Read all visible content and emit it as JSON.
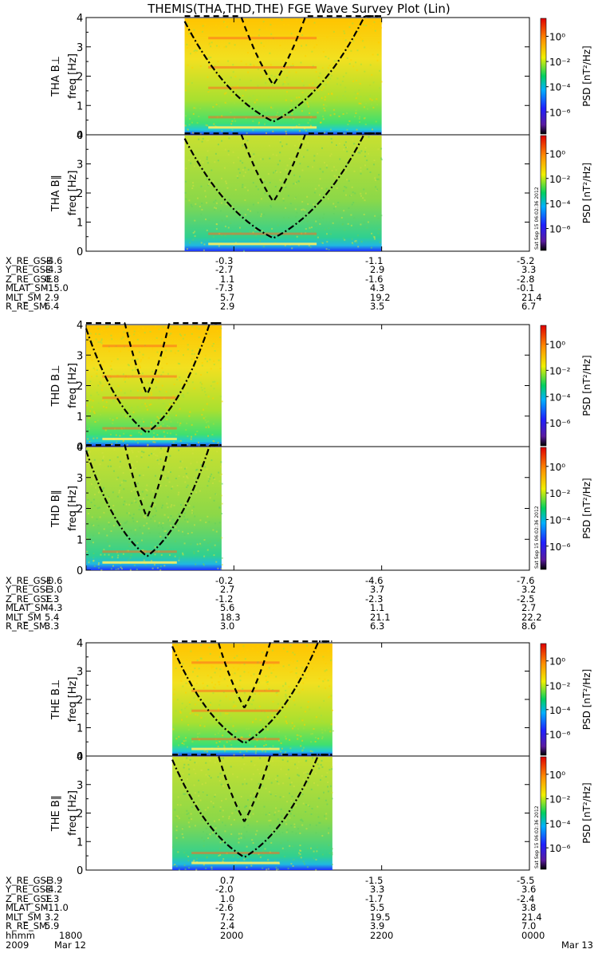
{
  "title": "THEMIS(THA,THD,THE) FGE Wave Survey Plot (Lin)",
  "colorbar_label": "PSD [nT²/Hz]",
  "colorbar_ticks": [
    "10⁰",
    "10⁻²",
    "10⁻⁴",
    "10⁻⁶"
  ],
  "freq_label": "freq [Hz]",
  "freq_ticks": [
    "0",
    "1",
    "2",
    "3",
    "4"
  ],
  "stamp": "Sat Sep 15 06:02:36 2012",
  "colors": {
    "low": "#2a3cff",
    "mid": "#20d080",
    "high": "#ffe000",
    "peak": "#ff3000"
  },
  "chart_data": {
    "type": "heatmap",
    "ylim": [
      0,
      4
    ],
    "panels": [
      {
        "probe": "THA",
        "label": "THA B⊥",
        "span": [
          "1920",
          "2200"
        ]
      },
      {
        "probe": "THA",
        "label": "THA B∥",
        "span": [
          "1920",
          "2200"
        ]
      },
      {
        "probe": "THD",
        "label": "THD B⊥",
        "span": [
          "1800",
          "1950"
        ]
      },
      {
        "probe": "THD",
        "label": "THD B∥",
        "span": [
          "1800",
          "1950"
        ]
      },
      {
        "probe": "THE",
        "label": "THE B⊥",
        "span": [
          "1910",
          "2120"
        ]
      },
      {
        "probe": "THE",
        "label": "THE B∥",
        "span": [
          "1910",
          "2120"
        ]
      }
    ],
    "ephemeris": [
      {
        "probe": "THA",
        "rows": [
          {
            "name": "X_RE_GSE",
            "values": [
              "-4.6",
              "-0.3",
              "-1.1",
              "-5.2"
            ]
          },
          {
            "name": "Y_RE_GSE",
            "values": [
              "-4.3",
              "-2.7",
              "2.9",
              "3.3"
            ]
          },
          {
            "name": "Z_RE_GSE",
            "values": [
              "0.8",
              "1.1",
              "-1.6",
              "-2.8"
            ]
          },
          {
            "name": "MLAT_SM",
            "values": [
              "-15.0",
              "-7.3",
              "4.3",
              "-0.1"
            ]
          },
          {
            "name": "MLT_SM",
            "values": [
              "2.9",
              "5.7",
              "19.2",
              "21.4"
            ]
          },
          {
            "name": "R_RE_SM",
            "values": [
              "6.4",
              "2.9",
              "3.5",
              "6.7"
            ]
          }
        ]
      },
      {
        "probe": "THD",
        "rows": [
          {
            "name": "X_RE_GSE",
            "values": [
              "-0.6",
              "-0.2",
              "-4.6",
              "-7.6"
            ]
          },
          {
            "name": "Y_RE_GSE",
            "values": [
              "-3.0",
              "2.7",
              "3.7",
              "3.2"
            ]
          },
          {
            "name": "Z_RE_GSE",
            "values": [
              "1.3",
              "-1.2",
              "-2.3",
              "-2.5"
            ]
          },
          {
            "name": "MLAT_SM",
            "values": [
              "-4.3",
              "5.6",
              "1.1",
              "2.7"
            ]
          },
          {
            "name": "MLT_SM",
            "values": [
              "5.4",
              "18.3",
              "21.1",
              "22.2"
            ]
          },
          {
            "name": "R_RE_SM",
            "values": [
              "3.3",
              "3.0",
              "6.3",
              "8.6"
            ]
          }
        ]
      },
      {
        "probe": "THE",
        "rows": [
          {
            "name": "X_RE_GSE",
            "values": [
              "-3.9",
              "0.7",
              "-1.5",
              "-5.5"
            ]
          },
          {
            "name": "Y_RE_GSE",
            "values": [
              "-4.2",
              "-2.0",
              "3.3",
              "3.6"
            ]
          },
          {
            "name": "Z_RE_GSE",
            "values": [
              "1.3",
              "1.0",
              "-1.7",
              "-2.4"
            ]
          },
          {
            "name": "MLAT_SM",
            "values": [
              "-11.0",
              "-2.6",
              "5.5",
              "3.8"
            ]
          },
          {
            "name": "MLT_SM",
            "values": [
              "3.2",
              "7.2",
              "19.5",
              "21.4"
            ]
          },
          {
            "name": "R_RE_SM",
            "values": [
              "5.9",
              "2.4",
              "3.9",
              "7.0"
            ]
          }
        ]
      }
    ],
    "time_axis": {
      "hhmm_label": "hhmm",
      "ticks": [
        "1800",
        "2000",
        "2200",
        "0000"
      ],
      "year": "2009",
      "start_date": "Mar 12",
      "end_date": "Mar 13"
    }
  }
}
